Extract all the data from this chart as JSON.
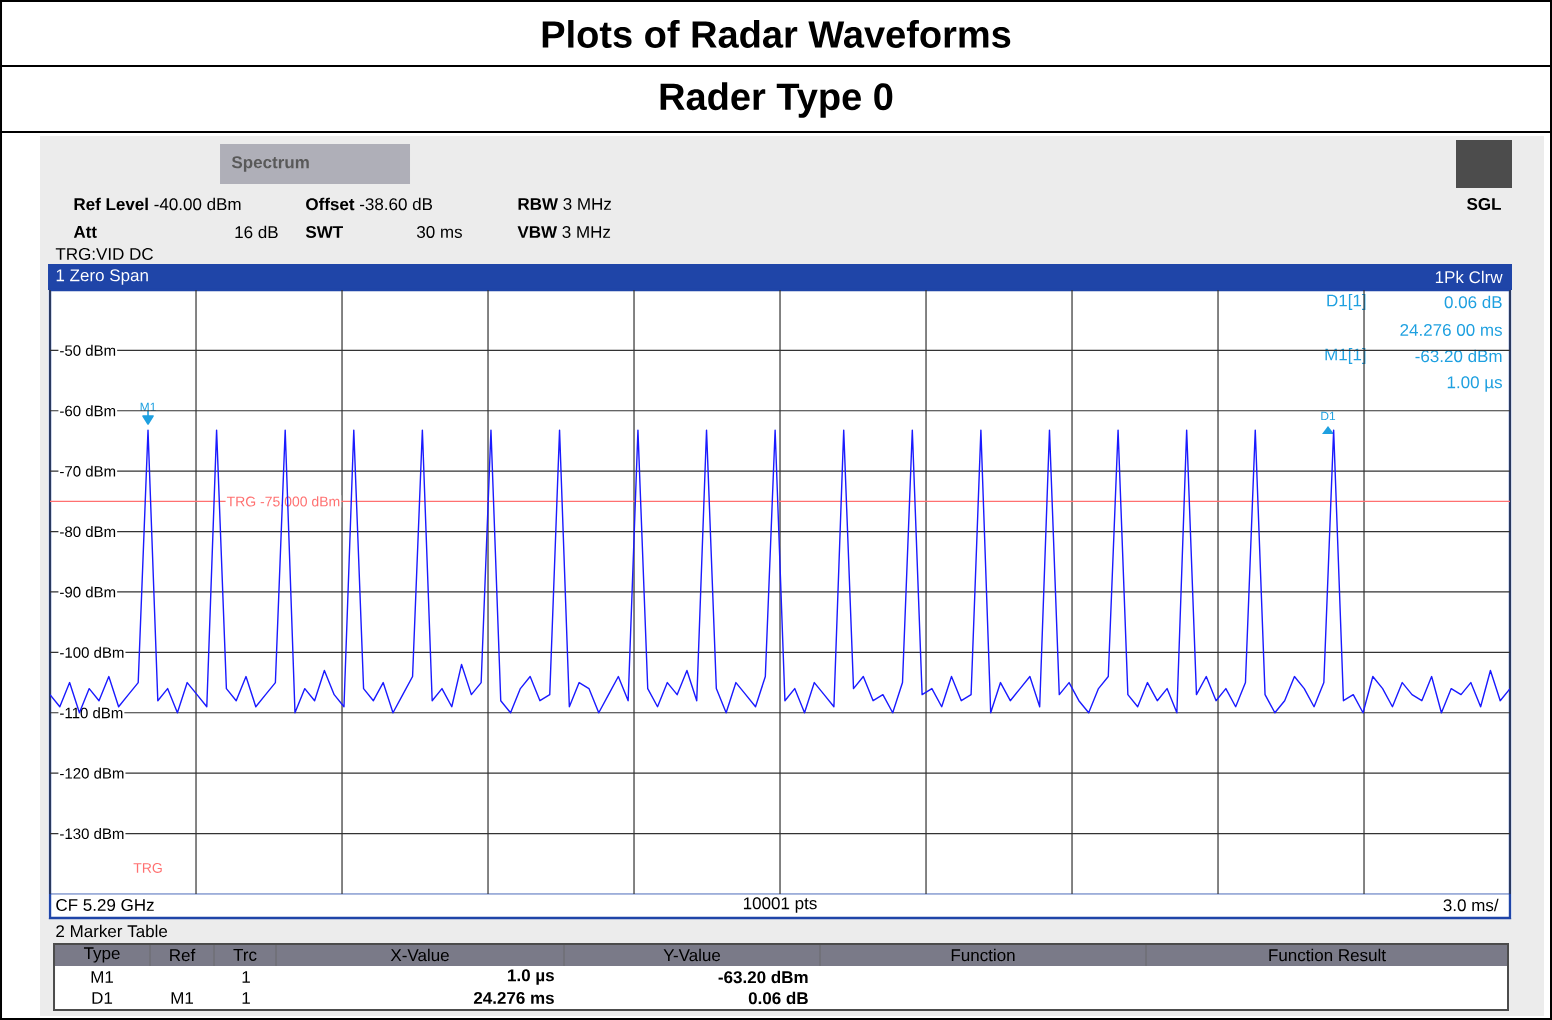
{
  "chart_data": {
    "type": "line",
    "title": "Plots of Radar Waveforms",
    "subtitle": "Rader Type 0",
    "categories": [
      null,
      null,
      null,
      null,
      null,
      null,
      null,
      null,
      null,
      null,
      null,
      null,
      null,
      null,
      null,
      null,
      null,
      null,
      null,
      null,
      null,
      null,
      null,
      null,
      null,
      null,
      null,
      null,
      null,
      null,
      null,
      null,
      null,
      null,
      null,
      null,
      null,
      null,
      null,
      null,
      null,
      null,
      null,
      null,
      null,
      null,
      null,
      null,
      null,
      null,
      null,
      null,
      null,
      null,
      null,
      null,
      null,
      null,
      null,
      null,
      null,
      null,
      null,
      null,
      null,
      null,
      null,
      null,
      null,
      null,
      null,
      null,
      null,
      null,
      null,
      null,
      null,
      null,
      null,
      null,
      null,
      null,
      null,
      null,
      null,
      null,
      null,
      null,
      null,
      null,
      null,
      null,
      null,
      null,
      null,
      null,
      null,
      null,
      null,
      null,
      null,
      null,
      null,
      null,
      null,
      null,
      null,
      null,
      null,
      null,
      null,
      null,
      null,
      null,
      null,
      null,
      null,
      null,
      null,
      null,
      null,
      null,
      null,
      null,
      null,
      null,
      null,
      null,
      null,
      null,
      null,
      null,
      null,
      null,
      null,
      null,
      null,
      null,
      null,
      null,
      null,
      null,
      null,
      null,
      null,
      null,
      null,
      null,
      null,
      null
    ],
    "series": [
      {
        "color": "#1a1aff",
        "values": [
          -107,
          -109,
          -105,
          -110,
          -106,
          -108,
          -104,
          -109,
          -107,
          -105,
          -63.2,
          -108,
          -106,
          -110,
          -105,
          -107,
          -109,
          -63.2,
          -106,
          -108,
          -104,
          -109,
          -107,
          -105,
          -63.2,
          -110,
          -106,
          -108,
          -103,
          -107,
          -109,
          -63.2,
          -106,
          -108,
          -105,
          -110,
          -107,
          -104,
          -63.2,
          -108,
          -106,
          -109,
          -102,
          -107,
          -105,
          -63.2,
          -108,
          -110,
          -106,
          -104,
          -108,
          -107,
          -63.2,
          -109,
          -105,
          -106,
          -110,
          -107,
          -104,
          -108,
          -63.2,
          -106,
          -109,
          -105,
          -107,
          -103,
          -108,
          -63.2,
          -106,
          -110,
          -105,
          -107,
          -109,
          -104,
          -63.2,
          -108,
          -106,
          -110,
          -105,
          -107,
          -109,
          -63.2,
          -106,
          -104,
          -108,
          -107,
          -110,
          -105,
          -63.2,
          -107,
          -106,
          -109,
          -104,
          -108,
          -107,
          -63.2,
          -110,
          -105,
          -108,
          -106,
          -104,
          -109,
          -63.2,
          -107,
          -105,
          -108,
          -110,
          -106,
          -104,
          -63.2,
          -107,
          -109,
          -105,
          -108,
          -106,
          -110,
          -63.2,
          -107,
          -104,
          -108,
          -106,
          -109,
          -105,
          -63.2,
          -107,
          -110,
          -108,
          -104,
          -106,
          -109,
          -105,
          -63.2,
          -108,
          -107,
          -110,
          -104,
          -106,
          -109,
          -105,
          -107,
          -108,
          -104,
          -110,
          -106,
          -107,
          -105,
          -109,
          -103,
          -108,
          -106
        ]
      }
    ],
    "ylim": [
      -140,
      -40
    ],
    "yticks": [
      {
        "value": -50,
        "label": "-50 dBm"
      },
      {
        "value": -60,
        "label": "-60 dBm"
      },
      {
        "value": -70,
        "label": "-70 dBm"
      },
      {
        "value": -80,
        "label": "-80 dBm"
      },
      {
        "value": -90,
        "label": "-90 dBm"
      },
      {
        "value": -100,
        "label": "-100 dBm"
      },
      {
        "value": -110,
        "label": "-110 dBm"
      },
      {
        "value": -120,
        "label": "-120 dBm"
      },
      {
        "value": -130,
        "label": "-130 dBm"
      }
    ],
    "tick_labels": "y",
    "grid": true,
    "marker": "none",
    "ref_lines": [
      {
        "axis": "y",
        "value": -75,
        "label": "TRG -75.000 dBm",
        "color": "#ff7070"
      }
    ],
    "annotations": [
      "Spectrum",
      "**Ref Level** -40.00 dBm",
      "**Offset** -38.60 dB",
      "**RBW** 3 MHz",
      "**Att**",
      "16 dB",
      "**SWT**",
      "30 ms",
      "**VBW** 3 MHz",
      "TRG:VID DC",
      "SGL",
      "1 Zero Span",
      "1Pk Clrw",
      "D1[1]",
      "0.06 dB",
      "24.276 00 ms",
      "M1[1]",
      "-63.20 dBm",
      "1.00 µs",
      "M1",
      "D1",
      "TRG",
      "CF 5.29 GHz",
      "10001 pts",
      "3.0 ms/",
      "2 Marker Table",
      "Type",
      "Ref",
      "Trc",
      "X-Value",
      "Y-Value",
      "Function",
      "Function Result",
      "M1",
      "1",
      "1.0 µs",
      "-63.20 dBm",
      "D1",
      "M1",
      "1",
      "24.276 ms",
      "0.06 dB"
    ]
  }
}
